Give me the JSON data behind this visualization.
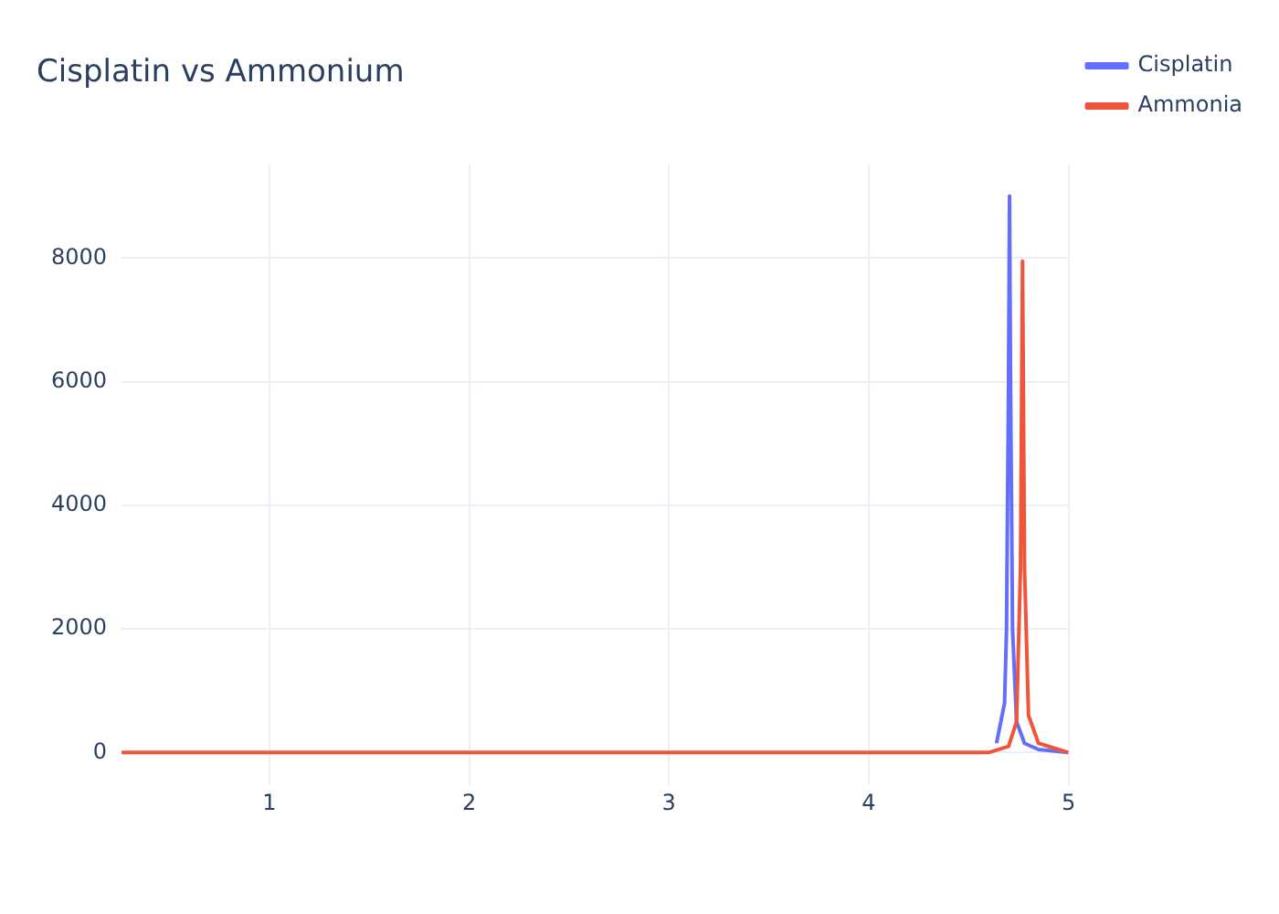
{
  "chart_data": {
    "type": "line",
    "title": "Cisplatin vs Ammonium",
    "series": [
      {
        "name": "Cisplatin",
        "color": "#636efa",
        "x": [
          4.64,
          4.68,
          4.69,
          4.7,
          4.705,
          4.71,
          4.72,
          4.74,
          4.78,
          4.85,
          5
        ],
        "values": [
          150,
          800,
          2000,
          6000,
          9000,
          6000,
          2000,
          500,
          150,
          50,
          0
        ]
      },
      {
        "name": "Ammonia",
        "color": "#ef553b",
        "x": [
          0.26,
          4.6,
          4.7,
          4.74,
          4.76,
          4.77,
          4.78,
          4.8,
          4.85,
          4.95,
          5
        ],
        "values": [
          0,
          0,
          100,
          500,
          3000,
          7950,
          3000,
          600,
          150,
          50,
          0
        ]
      }
    ],
    "xlim": [
      0.26,
      5
    ],
    "xticks": [
      1,
      2,
      3,
      4,
      5
    ],
    "ylim": [
      -530,
      9500
    ],
    "yticks": [
      0,
      2000,
      4000,
      6000,
      8000
    ],
    "grid": true,
    "legend": "top right",
    "marker": "none",
    "line_style": "solid"
  }
}
